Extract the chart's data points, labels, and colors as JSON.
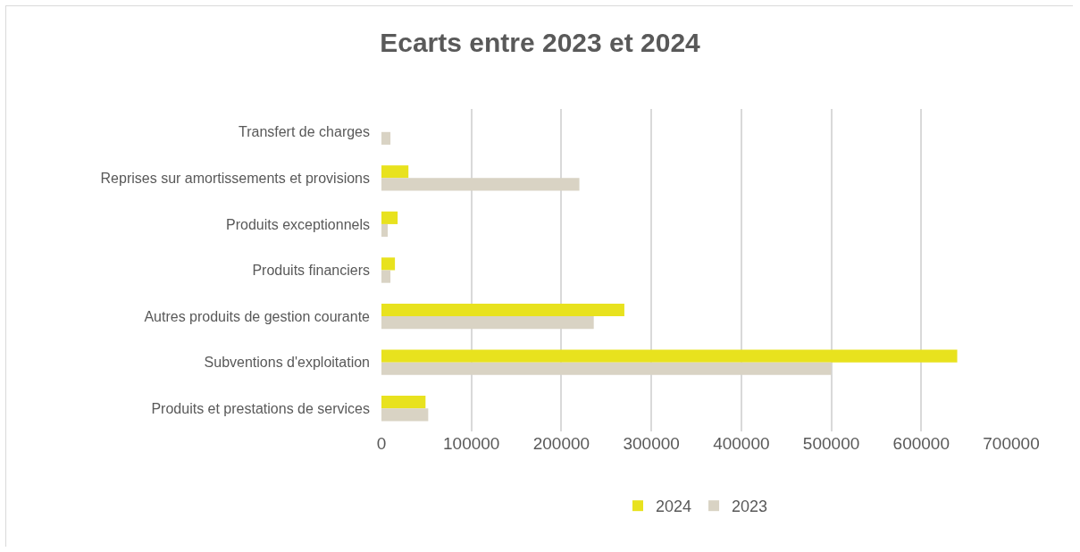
{
  "chart_data": {
    "type": "bar",
    "orientation": "horizontal",
    "title": "Ecarts entre 2023 et 2024",
    "categories": [
      "Transfert de charges",
      "Reprises sur amortissements et provisions",
      "Produits exceptionnels",
      "Produits financiers",
      "Autres produits de gestion courante",
      "Subventions d'exploitation",
      "Produits et prestations de services"
    ],
    "series": [
      {
        "name": "2024",
        "color": "#e8e21e",
        "values": [
          null,
          30000,
          18000,
          15000,
          270000,
          640000,
          49000
        ]
      },
      {
        "name": "2023",
        "color": "#d9d3c4",
        "values": [
          10000,
          220000,
          7000,
          10000,
          236000,
          500000,
          52000
        ]
      }
    ],
    "xlim": [
      0,
      700000
    ],
    "xticks": [
      0,
      100000,
      200000,
      300000,
      400000,
      500000,
      600000,
      700000
    ],
    "grid": "x",
    "legend": "bottom"
  }
}
